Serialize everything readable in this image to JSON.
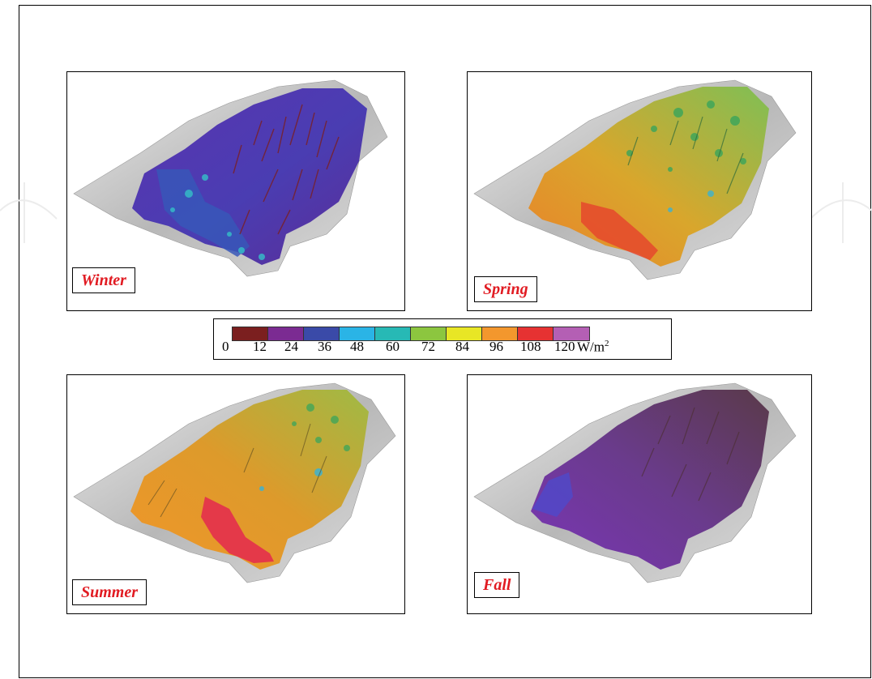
{
  "legend": {
    "ticks": [
      "0",
      "12",
      "24",
      "36",
      "48",
      "60",
      "72",
      "84",
      "96",
      "108",
      "120"
    ],
    "colors": [
      "#7b1f1f",
      "#7b2b92",
      "#3a4aa8",
      "#2ab4e6",
      "#27b9b5",
      "#8cc63f",
      "#e8e625",
      "#f3972d",
      "#e63232",
      "#b45fb4"
    ],
    "unit": "W/m",
    "unit_sup": "2"
  },
  "panels": [
    {
      "label": "Winter",
      "scheme": "winter"
    },
    {
      "label": "Spring",
      "scheme": "spring"
    },
    {
      "label": "Summer",
      "scheme": "summer"
    },
    {
      "label": "Fall",
      "scheme": "fall"
    }
  ]
}
